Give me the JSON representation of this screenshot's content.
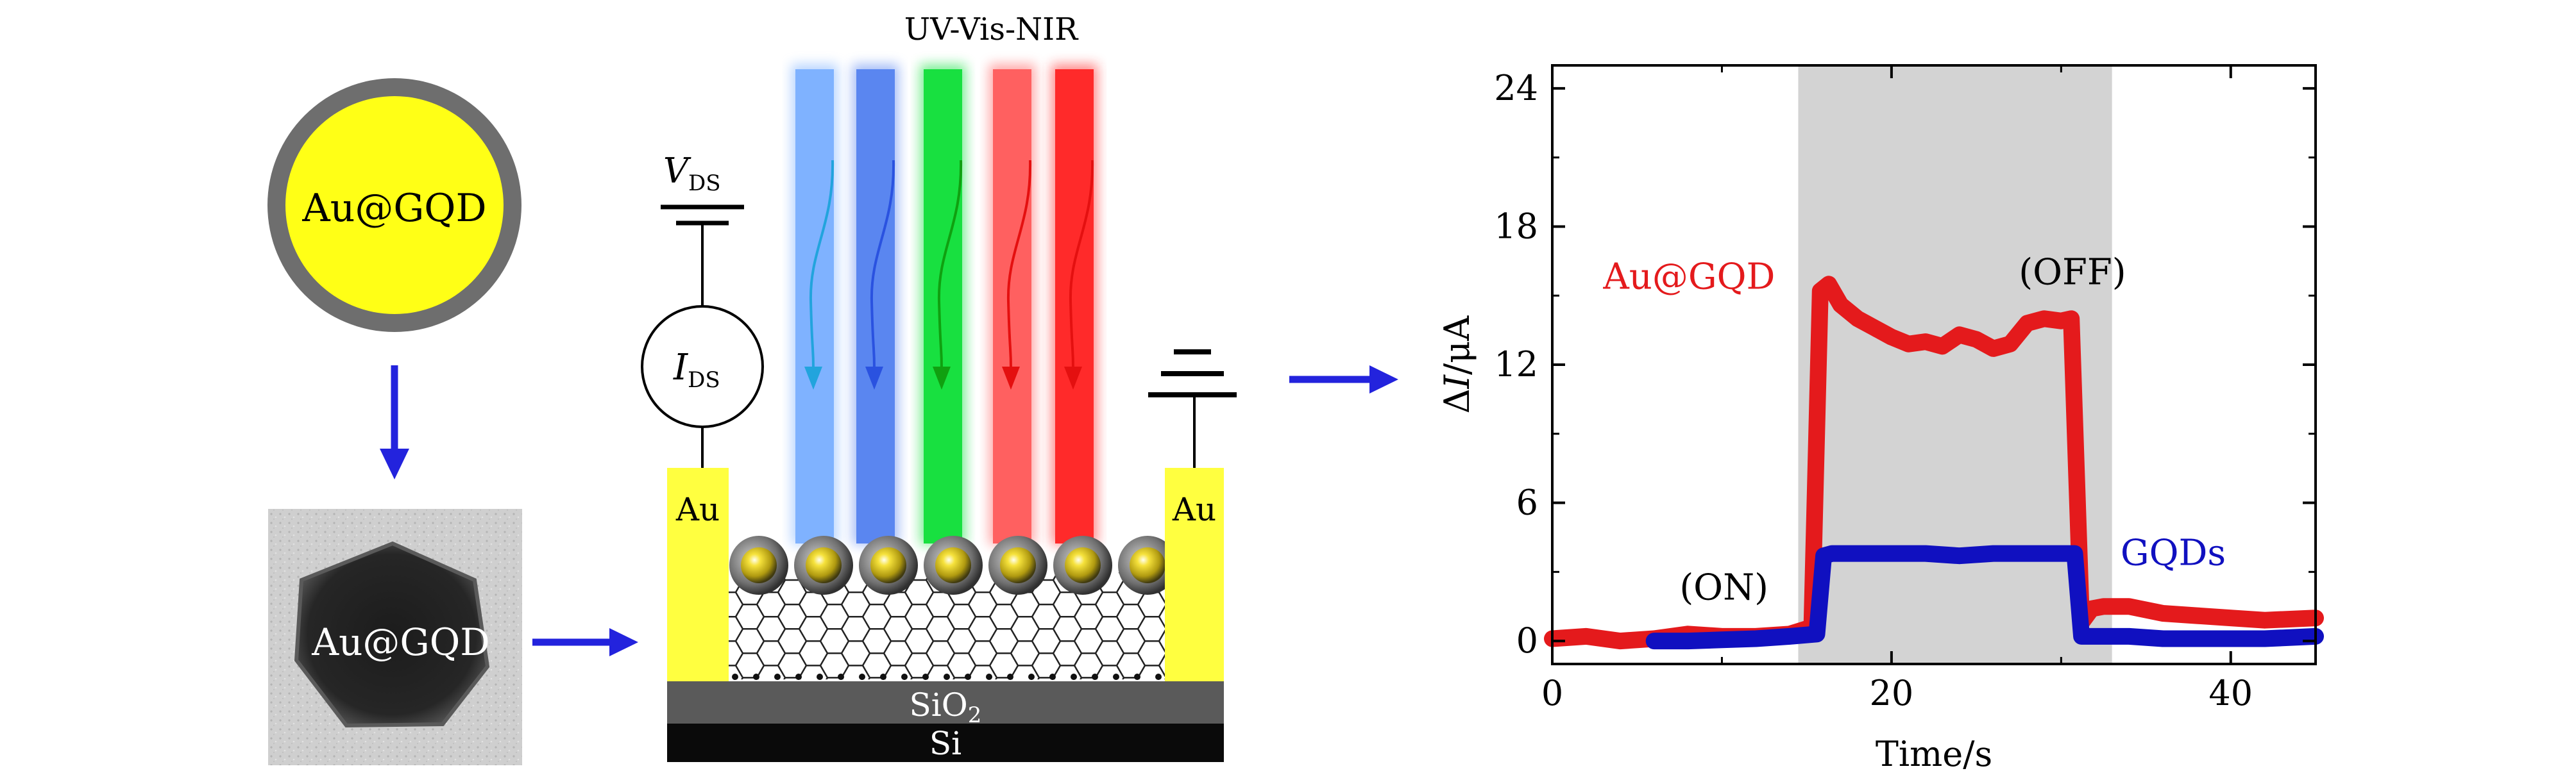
{
  "sphere_label": "Au@GQD",
  "tem_label": "Au@GQD",
  "illumination_label": "UV-Vis-NIR",
  "vds_label": "V",
  "vds_sub": "DS",
  "ids_label": "I",
  "ids_sub": "DS",
  "electrode_left": "Au",
  "electrode_right": "Au",
  "sio2_label": "SiO",
  "sio2_sub": "2",
  "si_label": "Si",
  "beam_colors": [
    "#7fb2ff",
    "#5a86f0",
    "#18e040",
    "#ff6060",
    "#ff2a2a"
  ],
  "arrow_colors": [
    "#22a4dd",
    "#2a52e0",
    "#10a010",
    "#e41010",
    "#e41010"
  ],
  "chart_data": {
    "type": "line",
    "xlabel": "Time/s",
    "ylabel": "ΔI/μA",
    "xlim": [
      0,
      45
    ],
    "ylim": [
      -1,
      25
    ],
    "xticks": [
      0,
      20,
      40
    ],
    "yticks": [
      0,
      6,
      12,
      18,
      24
    ],
    "shaded_region": [
      14.5,
      33
    ],
    "annotations": [
      {
        "text": "Au@GQD",
        "x": 3,
        "y": 15.3,
        "color": "#e41a1c"
      },
      {
        "text": "(OFF)",
        "x": 27.5,
        "y": 15.5,
        "color": "#000000"
      },
      {
        "text": "(ON)",
        "x": 7.5,
        "y": 1.8,
        "color": "#000000"
      },
      {
        "text": "GQDs",
        "x": 33.5,
        "y": 3.3,
        "color": "#1010c0"
      }
    ],
    "series": [
      {
        "name": "Au@GQD",
        "color": "#e41a1c",
        "x": [
          0,
          2,
          4,
          6,
          8,
          10,
          12,
          14,
          15.3,
          15.8,
          16.3,
          17,
          18,
          19,
          20,
          21,
          22,
          23,
          24,
          25,
          26,
          27,
          28,
          29,
          30,
          30.6,
          31.2,
          31.8,
          32.5,
          34,
          36,
          38,
          40,
          42,
          45
        ],
        "y": [
          0.1,
          0.2,
          0.0,
          0.1,
          0.3,
          0.2,
          0.2,
          0.3,
          0.6,
          15.2,
          15.5,
          14.6,
          14.0,
          13.6,
          13.2,
          12.9,
          13.0,
          12.8,
          13.3,
          13.1,
          12.7,
          12.9,
          13.8,
          14.0,
          13.9,
          14.0,
          0.8,
          1.4,
          1.5,
          1.5,
          1.2,
          1.1,
          1.0,
          0.9,
          1.0
        ]
      },
      {
        "name": "GQDs",
        "color": "#1010c0",
        "x": [
          6,
          8,
          10,
          12,
          14,
          15.6,
          16.0,
          16.5,
          18,
          20,
          22,
          24,
          26,
          28,
          30,
          30.8,
          31.2,
          31.8,
          34,
          36,
          38,
          40,
          42,
          45
        ],
        "y": [
          0,
          0,
          0.05,
          0.1,
          0.2,
          0.3,
          3.7,
          3.8,
          3.8,
          3.8,
          3.8,
          3.7,
          3.8,
          3.8,
          3.8,
          3.8,
          0.2,
          0.2,
          0.2,
          0.1,
          0.1,
          0.1,
          0.1,
          0.2
        ]
      }
    ]
  }
}
